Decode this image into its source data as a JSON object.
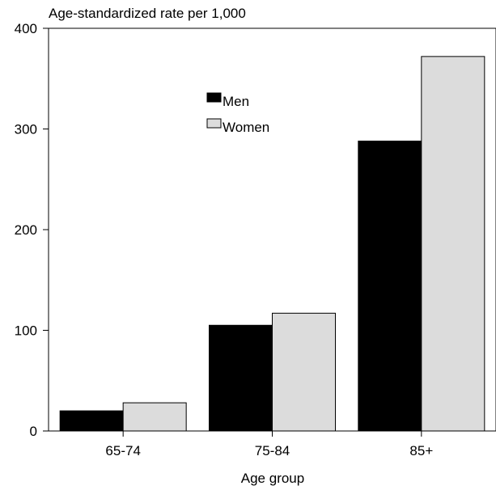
{
  "chart_data": {
    "type": "bar",
    "title": "",
    "ylabel": "Age-standardized rate per 1,000",
    "xlabel": "Age group",
    "categories": [
      "65-74",
      "75-84",
      "85+"
    ],
    "series": [
      {
        "name": "Men",
        "values": [
          20,
          105,
          288
        ],
        "color": "#000000"
      },
      {
        "name": "Women",
        "values": [
          28,
          117,
          372
        ],
        "color": "#dcdcdc"
      }
    ],
    "ylim": [
      0,
      400
    ],
    "yticks": [
      0,
      100,
      200,
      300,
      400
    ],
    "grid": false,
    "legend": "upper-center"
  }
}
